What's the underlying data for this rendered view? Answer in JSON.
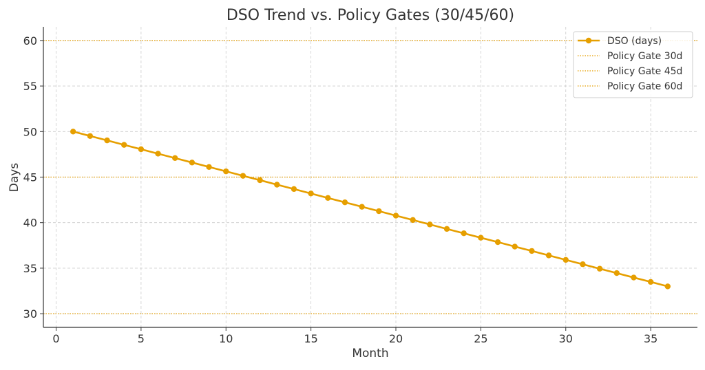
{
  "chart_data": {
    "type": "line",
    "title": "DSO Trend vs. Policy Gates (30/45/60)",
    "xlabel": "Month",
    "ylabel": "Days",
    "xlim": [
      -0.75,
      37.75
    ],
    "ylim": [
      28.5,
      61.5
    ],
    "xticks": [
      0,
      5,
      10,
      15,
      20,
      25,
      30,
      35
    ],
    "yticks": [
      30,
      35,
      40,
      45,
      50,
      55,
      60
    ],
    "grid": true,
    "legend_position": "top-right",
    "series": [
      {
        "name": "DSO (days)",
        "color": "#E69F00",
        "marker": "circle",
        "x": [
          1,
          2,
          3,
          4,
          5,
          6,
          7,
          8,
          9,
          10,
          11,
          12,
          13,
          14,
          15,
          16,
          17,
          18,
          19,
          20,
          21,
          22,
          23,
          24,
          25,
          26,
          27,
          28,
          29,
          30,
          31,
          32,
          33,
          34,
          35,
          36
        ],
        "y": [
          50.0,
          49.51,
          49.03,
          48.54,
          48.06,
          47.57,
          47.09,
          46.6,
          46.11,
          45.63,
          45.14,
          44.66,
          44.17,
          43.69,
          43.2,
          42.71,
          42.23,
          41.74,
          41.26,
          40.77,
          40.29,
          39.8,
          39.31,
          38.83,
          38.34,
          37.86,
          37.37,
          36.89,
          36.4,
          35.91,
          35.43,
          34.94,
          34.46,
          33.97,
          33.49,
          33.0
        ]
      }
    ],
    "reference_lines": [
      {
        "name": "Policy Gate 30d",
        "y": 30,
        "color": "#E69F00",
        "style": "dotted"
      },
      {
        "name": "Policy Gate 45d",
        "y": 45,
        "color": "#E69F00",
        "style": "dotted"
      },
      {
        "name": "Policy Gate 60d",
        "y": 60,
        "color": "#E69F00",
        "style": "dotted"
      }
    ]
  }
}
